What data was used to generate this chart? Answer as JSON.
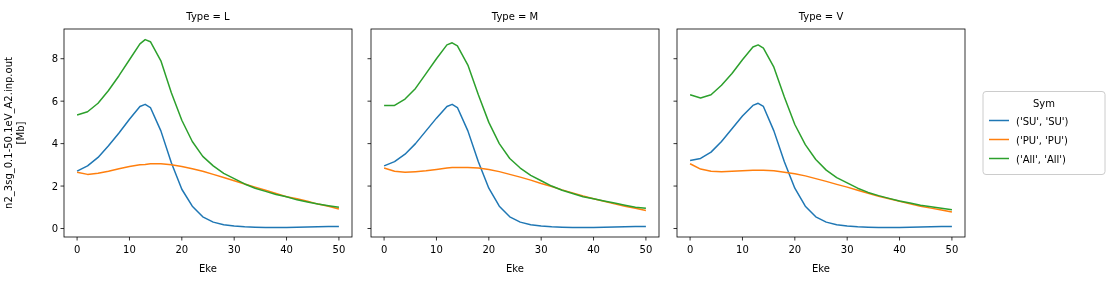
{
  "chart_data": [
    {
      "type": "line",
      "title": "Type = L",
      "xlabel": "Eke",
      "ylabel": "n2_3sg_0.1-50.1eV_A2.inp.out\n[Mb]",
      "xlim": [
        -2.5,
        52.5
      ],
      "ylim": [
        -0.4,
        9.4
      ],
      "xticks": [
        0,
        10,
        20,
        30,
        40,
        50
      ],
      "yticks": [
        0,
        2,
        4,
        6,
        8
      ],
      "grid": false,
      "legend": false,
      "x": [
        0,
        2,
        4,
        6,
        8,
        10,
        12,
        13,
        14,
        16,
        18,
        20,
        22,
        24,
        26,
        28,
        30,
        32,
        34,
        36,
        38,
        40,
        42,
        44,
        46,
        48,
        50
      ],
      "series": [
        {
          "color": "#1f77b4",
          "values": [
            2.7,
            2.95,
            3.35,
            3.9,
            4.5,
            5.15,
            5.75,
            5.85,
            5.7,
            4.6,
            3.1,
            1.85,
            1.05,
            0.55,
            0.3,
            0.18,
            0.12,
            0.08,
            0.06,
            0.05,
            0.05,
            0.05,
            0.06,
            0.07,
            0.08,
            0.09,
            0.1
          ]
        },
        {
          "color": "#ff7f0e",
          "values": [
            2.65,
            2.55,
            2.6,
            2.7,
            2.82,
            2.92,
            3.0,
            3.02,
            3.05,
            3.05,
            3.0,
            2.92,
            2.82,
            2.7,
            2.55,
            2.4,
            2.25,
            2.1,
            1.95,
            1.8,
            1.65,
            1.5,
            1.4,
            1.28,
            1.15,
            1.05,
            0.92
          ]
        },
        {
          "color": "#2ca02c",
          "values": [
            5.35,
            5.5,
            5.9,
            6.5,
            7.2,
            7.95,
            8.7,
            8.9,
            8.8,
            7.9,
            6.4,
            5.1,
            4.1,
            3.4,
            2.95,
            2.6,
            2.35,
            2.1,
            1.9,
            1.75,
            1.6,
            1.5,
            1.35,
            1.25,
            1.15,
            1.07,
            1.0
          ]
        }
      ]
    },
    {
      "type": "line",
      "title": "Type = M",
      "xlabel": "Eke",
      "xlim": [
        -2.5,
        52.5
      ],
      "ylim": [
        -0.4,
        9.4
      ],
      "xticks": [
        0,
        10,
        20,
        30,
        40,
        50
      ],
      "yticks": [
        0,
        2,
        4,
        6,
        8
      ],
      "tick_labels": "x",
      "grid": false,
      "legend": false,
      "x": [
        0,
        2,
        4,
        6,
        8,
        10,
        12,
        13,
        14,
        16,
        18,
        20,
        22,
        24,
        26,
        28,
        30,
        32,
        34,
        36,
        38,
        40,
        42,
        44,
        46,
        48,
        50
      ],
      "series": [
        {
          "color": "#1f77b4",
          "values": [
            2.95,
            3.15,
            3.5,
            4.0,
            4.6,
            5.2,
            5.75,
            5.85,
            5.7,
            4.6,
            3.15,
            1.9,
            1.05,
            0.55,
            0.3,
            0.18,
            0.12,
            0.08,
            0.06,
            0.05,
            0.05,
            0.05,
            0.06,
            0.07,
            0.08,
            0.09,
            0.1
          ]
        },
        {
          "color": "#ff7f0e",
          "values": [
            2.85,
            2.7,
            2.65,
            2.68,
            2.72,
            2.78,
            2.85,
            2.87,
            2.88,
            2.88,
            2.85,
            2.78,
            2.68,
            2.55,
            2.42,
            2.28,
            2.12,
            1.98,
            1.82,
            1.68,
            1.53,
            1.4,
            1.28,
            1.16,
            1.05,
            0.95,
            0.85
          ]
        },
        {
          "color": "#2ca02c",
          "values": [
            5.8,
            5.8,
            6.1,
            6.6,
            7.3,
            8.0,
            8.65,
            8.75,
            8.6,
            7.7,
            6.3,
            5.0,
            4.0,
            3.3,
            2.85,
            2.5,
            2.25,
            2.0,
            1.8,
            1.65,
            1.5,
            1.4,
            1.3,
            1.2,
            1.1,
            1.0,
            0.95
          ]
        }
      ]
    },
    {
      "type": "line",
      "title": "Type = V",
      "xlabel": "Eke",
      "xlim": [
        -2.5,
        52.5
      ],
      "ylim": [
        -0.4,
        9.4
      ],
      "xticks": [
        0,
        10,
        20,
        30,
        40,
        50
      ],
      "yticks": [
        0,
        2,
        4,
        6,
        8
      ],
      "tick_labels": "x",
      "grid": false,
      "legend": "right",
      "legend_title": "Sym",
      "x": [
        0,
        2,
        4,
        6,
        8,
        10,
        12,
        13,
        14,
        16,
        18,
        20,
        22,
        24,
        26,
        28,
        30,
        32,
        34,
        36,
        38,
        40,
        42,
        44,
        46,
        48,
        50
      ],
      "series": [
        {
          "name": "('SU', 'SU')",
          "color": "#1f77b4",
          "values": [
            3.2,
            3.3,
            3.6,
            4.1,
            4.7,
            5.3,
            5.8,
            5.9,
            5.75,
            4.6,
            3.15,
            1.9,
            1.05,
            0.55,
            0.3,
            0.18,
            0.12,
            0.08,
            0.06,
            0.05,
            0.05,
            0.05,
            0.06,
            0.07,
            0.08,
            0.09,
            0.1
          ]
        },
        {
          "name": "('PU', 'PU')",
          "color": "#ff7f0e",
          "values": [
            3.05,
            2.8,
            2.7,
            2.68,
            2.7,
            2.72,
            2.75,
            2.75,
            2.75,
            2.72,
            2.65,
            2.58,
            2.48,
            2.35,
            2.22,
            2.08,
            1.95,
            1.8,
            1.66,
            1.52,
            1.4,
            1.28,
            1.16,
            1.05,
            0.96,
            0.87,
            0.78
          ]
        },
        {
          "name": "('All', 'All')",
          "color": "#2ca02c",
          "values": [
            6.3,
            6.15,
            6.3,
            6.75,
            7.3,
            7.95,
            8.55,
            8.65,
            8.5,
            7.6,
            6.2,
            4.9,
            3.95,
            3.25,
            2.75,
            2.4,
            2.15,
            1.9,
            1.7,
            1.55,
            1.42,
            1.3,
            1.2,
            1.1,
            1.02,
            0.95,
            0.88
          ]
        }
      ]
    }
  ]
}
